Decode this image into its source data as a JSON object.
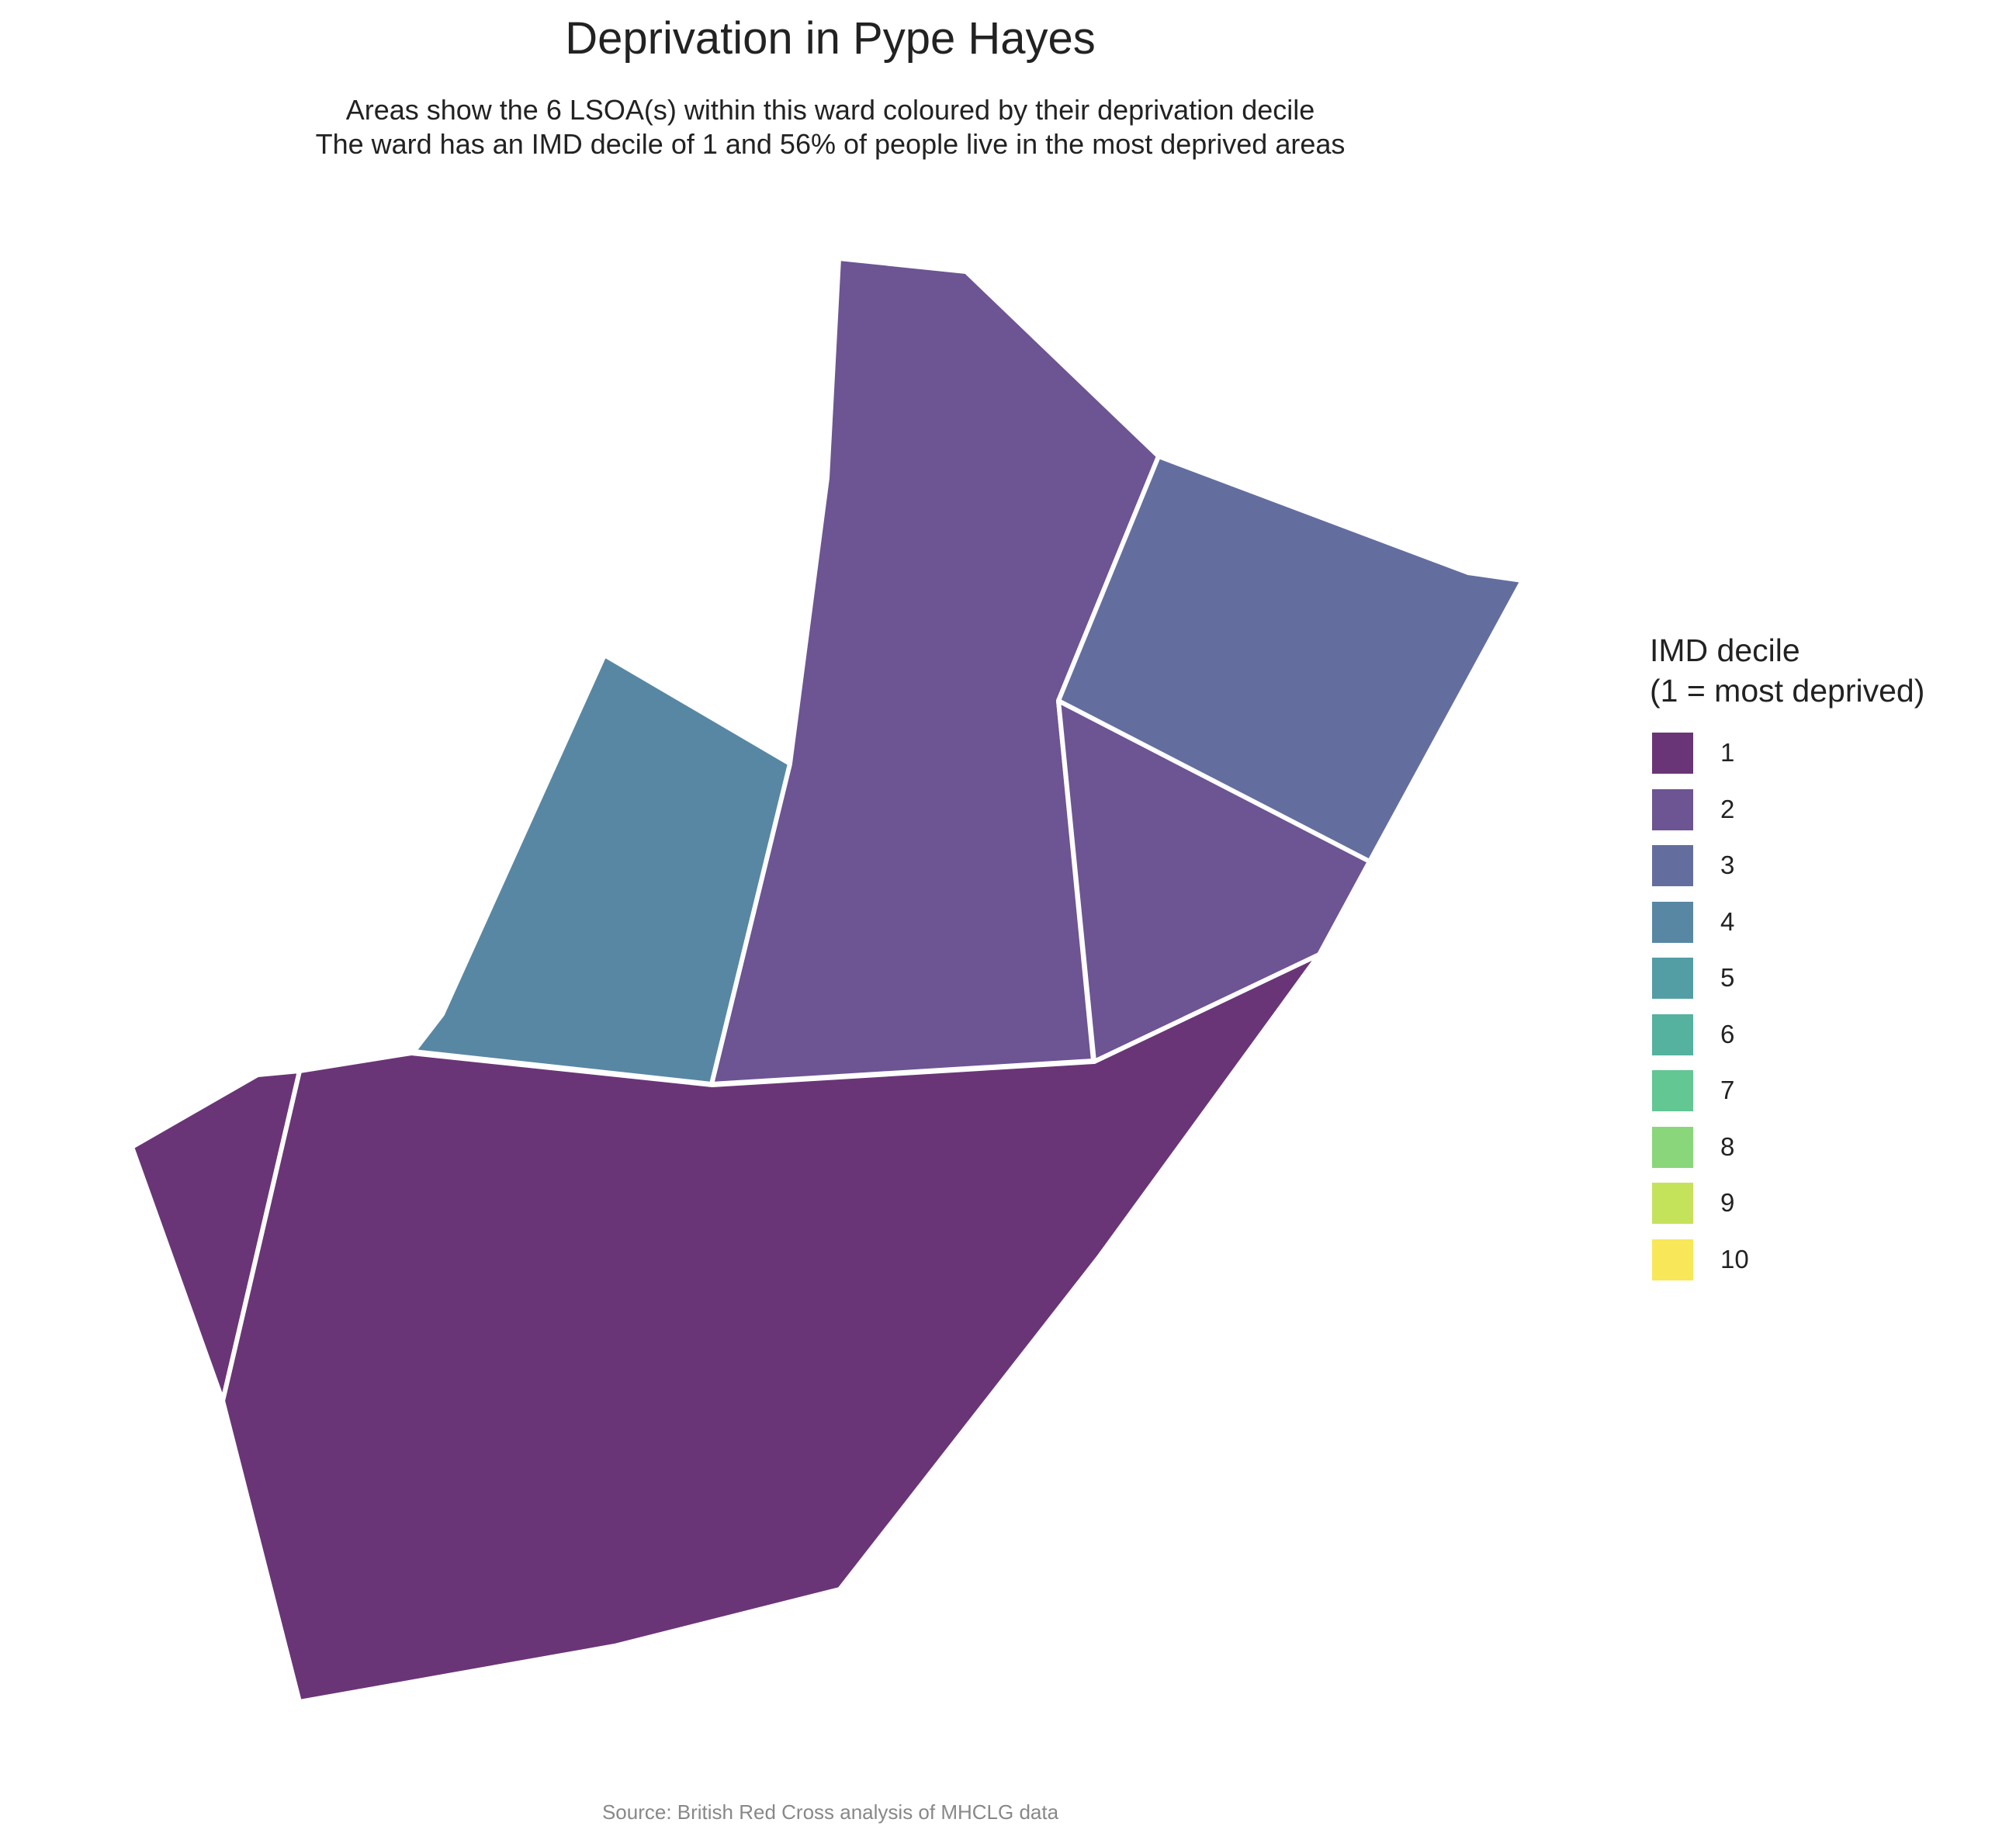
{
  "title": "Deprivation in Pype Hayes",
  "subtitle": {
    "line1": "Areas show the 6 LSOA(s) within this ward coloured by their deprivation decile",
    "line2": "The ward has an IMD decile of 1 and 56% of people live in the most deprived areas"
  },
  "caption": "Source: British Red Cross analysis of MHCLG data",
  "legend": {
    "title_line1": "IMD decile",
    "title_line2": "(1 = most deprived)",
    "items": [
      {
        "label": "1",
        "color": "#6a3577"
      },
      {
        "label": "2",
        "color": "#6d5493"
      },
      {
        "label": "3",
        "color": "#636e9f"
      },
      {
        "label": "4",
        "color": "#5887a4"
      },
      {
        "label": "5",
        "color": "#539da4"
      },
      {
        "label": "6",
        "color": "#54b29f"
      },
      {
        "label": "7",
        "color": "#62c793"
      },
      {
        "label": "8",
        "color": "#8ad67a"
      },
      {
        "label": "9",
        "color": "#c5e25b"
      },
      {
        "label": "10",
        "color": "#f8e758"
      }
    ]
  },
  "map_areas": [
    {
      "area": "south-large",
      "decile": 1
    },
    {
      "area": "west-small",
      "decile": 1
    },
    {
      "area": "central-north",
      "decile": 2
    },
    {
      "area": "east-middle",
      "decile": 2
    },
    {
      "area": "north-east",
      "decile": 3
    },
    {
      "area": "central-west",
      "decile": 4
    }
  ],
  "colors": {
    "border": "#ffffff",
    "text": "#222222",
    "caption": "#888888"
  }
}
